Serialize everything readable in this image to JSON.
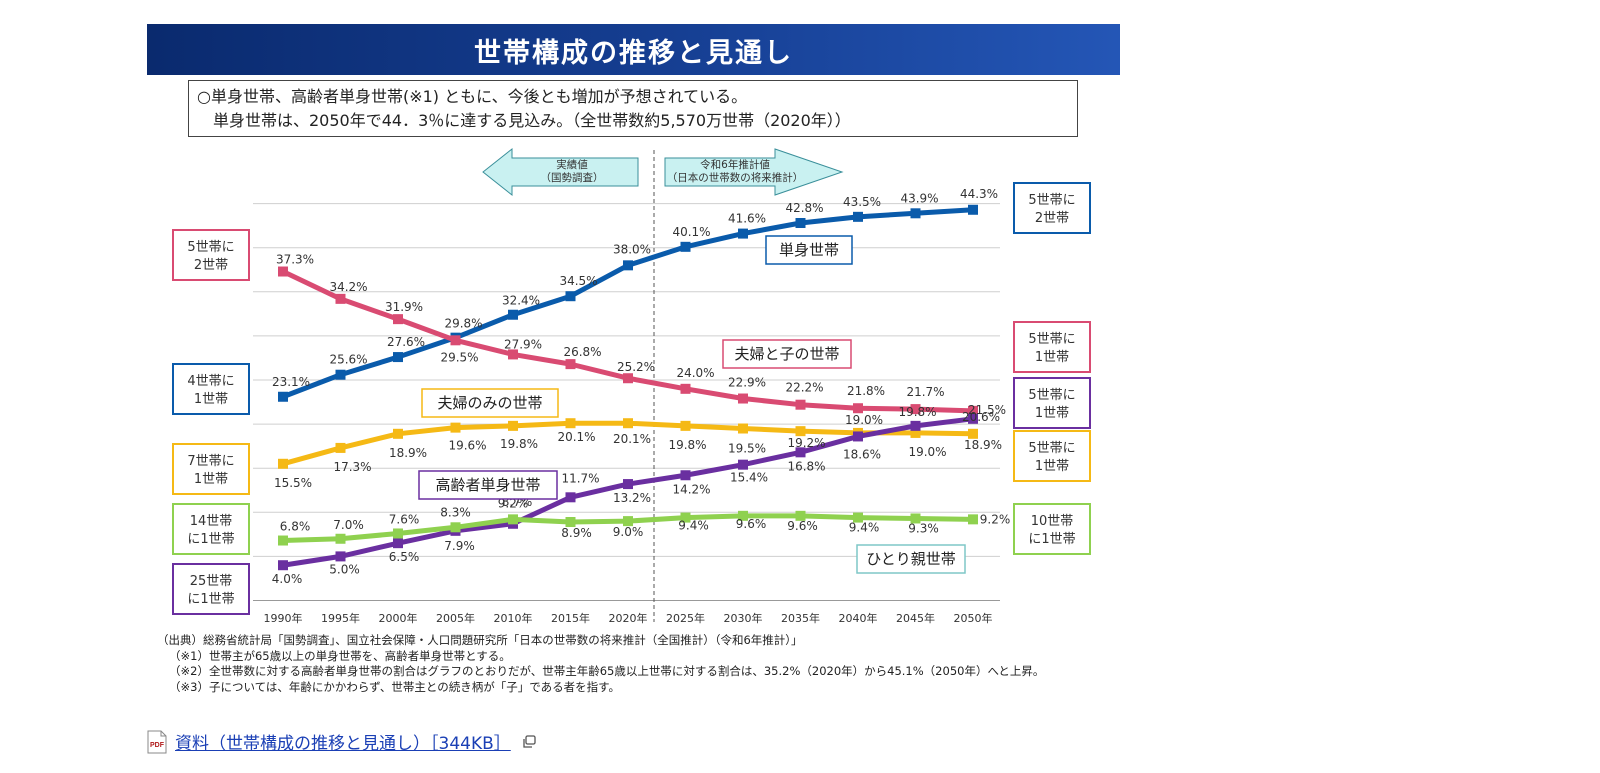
{
  "header": {
    "title": "世帯構成の推移と見通し"
  },
  "summary": {
    "line1": "○単身世帯、高齢者単身世帯(※1) ともに、今後とも増加が予想されている。",
    "line2": "単身世帯は、2050年で44．3％に達する見込み。（全世帯数約5,570万世帯（2020年））"
  },
  "chart_data": {
    "type": "line",
    "x": [
      "1990年",
      "1995年",
      "2000年",
      "2005年",
      "2010年",
      "2015年",
      "2020年",
      "2025年",
      "2030年",
      "2035年",
      "2040年",
      "2045年",
      "2050年"
    ],
    "ylim": [
      0,
      48
    ],
    "grid": true,
    "arrows": {
      "actual_line1": "実績値",
      "actual_line2": "（国勢調査）",
      "forecast_line1": "令和6年推計値",
      "forecast_line2": "（日本の世帯数の将来推計）"
    },
    "series": [
      {
        "id": "single",
        "name": "単身世帯",
        "color": "#0a5bab",
        "values": [
          23.1,
          25.6,
          27.6,
          29.8,
          32.4,
          34.5,
          38.0,
          40.1,
          41.6,
          42.8,
          43.5,
          43.9,
          44.3
        ],
        "left_tag": "4世帯に\n1世帯",
        "right_tag": "5世帯に\n2世帯"
      },
      {
        "id": "couple_child",
        "name": "夫婦と子の世帯",
        "color": "#d94b72",
        "values": [
          37.3,
          34.2,
          31.9,
          29.5,
          27.9,
          26.8,
          25.2,
          24.0,
          22.9,
          22.2,
          21.8,
          21.7,
          21.5
        ],
        "left_tag": "5世帯に\n2世帯",
        "right_tag": "5世帯に\n1世帯"
      },
      {
        "id": "couple",
        "name": "夫婦のみの世帯",
        "color": "#f5b915",
        "values": [
          15.5,
          17.3,
          18.9,
          19.6,
          19.8,
          20.1,
          20.1,
          19.8,
          19.5,
          19.2,
          19.0,
          19.0,
          18.9
        ],
        "left_tag": "7世帯に\n1世帯",
        "right_tag": "5世帯に\n1世帯"
      },
      {
        "id": "elderly_single",
        "name": "高齢者単身世帯",
        "color": "#6a2fa0",
        "values": [
          4.0,
          5.0,
          6.5,
          7.9,
          8.7,
          11.7,
          13.2,
          14.2,
          15.4,
          16.8,
          18.6,
          19.8,
          20.6
        ],
        "left_tag": "25世帯\nに1世帯",
        "right_tag": "5世帯に\n1世帯"
      },
      {
        "id": "single_parent",
        "name": "ひとり親世帯",
        "color": "#8fd14f",
        "values": [
          6.8,
          7.0,
          7.6,
          8.3,
          9.2,
          8.9,
          9.0,
          9.4,
          9.6,
          9.6,
          9.4,
          9.3,
          9.2
        ],
        "left_tag": "14世帯\nに1世帯",
        "right_tag": "10世帯\nに1世帯"
      }
    ]
  },
  "footnotes": [
    "（出典）総務省統計局「国勢調査」、国立社会保障・人口問題研究所「日本の世帯数の将来推計（全国推計）（令和6年推計）」",
    "（※1）世帯主が65歳以上の単身世帯を、高齢者単身世帯とする。",
    "（※2）全世帯数に対する高齢者単身世帯の割合はグラフのとおりだが、世帯主年齢65歳以上世帯に対する割合は、35.2%（2020年）から45.1%（2050年）へと上昇。",
    "（※3）子については、年齢にかかわらず、世帯主との続き柄が「子」である者を指す。"
  ],
  "download": {
    "file_label": "PDF",
    "link_text": "資料（世帯構成の推移と見通し）［344KB］"
  },
  "colors": {
    "title_bg": "#163f93",
    "link": "#1a3fb5"
  }
}
